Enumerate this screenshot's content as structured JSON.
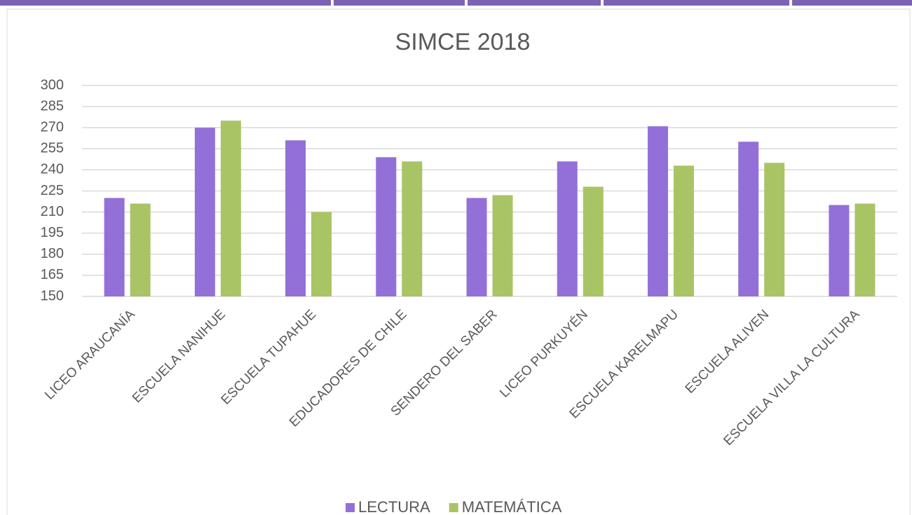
{
  "chart_data": {
    "type": "bar",
    "title": "SIMCE 2018",
    "categories": [
      "LICEO ARAUCANÍA",
      "ESCUELA NANIHUE",
      "ESCUELA TUPAHUE",
      "EDUCADORES DE  CHILE",
      "SENDERO DEL SABER",
      "LICEO PURKUYÉN",
      "ESCUELA KARELMAPU",
      "ESCUELA ALIVEN",
      "ESCUELA VILLA LA CULTURA"
    ],
    "series": [
      {
        "name": "LECTURA",
        "color": "#9370d8",
        "values": [
          220,
          270,
          261,
          249,
          220,
          246,
          271,
          260,
          215
        ]
      },
      {
        "name": "MATEMÁTICA",
        "color": "#a9c465",
        "values": [
          216,
          275,
          210,
          246,
          222,
          228,
          243,
          245,
          216
        ]
      }
    ],
    "ylim": [
      150,
      300
    ],
    "yticks": [
      150,
      165,
      180,
      195,
      210,
      225,
      240,
      255,
      270,
      285,
      300
    ],
    "grid": true,
    "legend": "bottom"
  }
}
